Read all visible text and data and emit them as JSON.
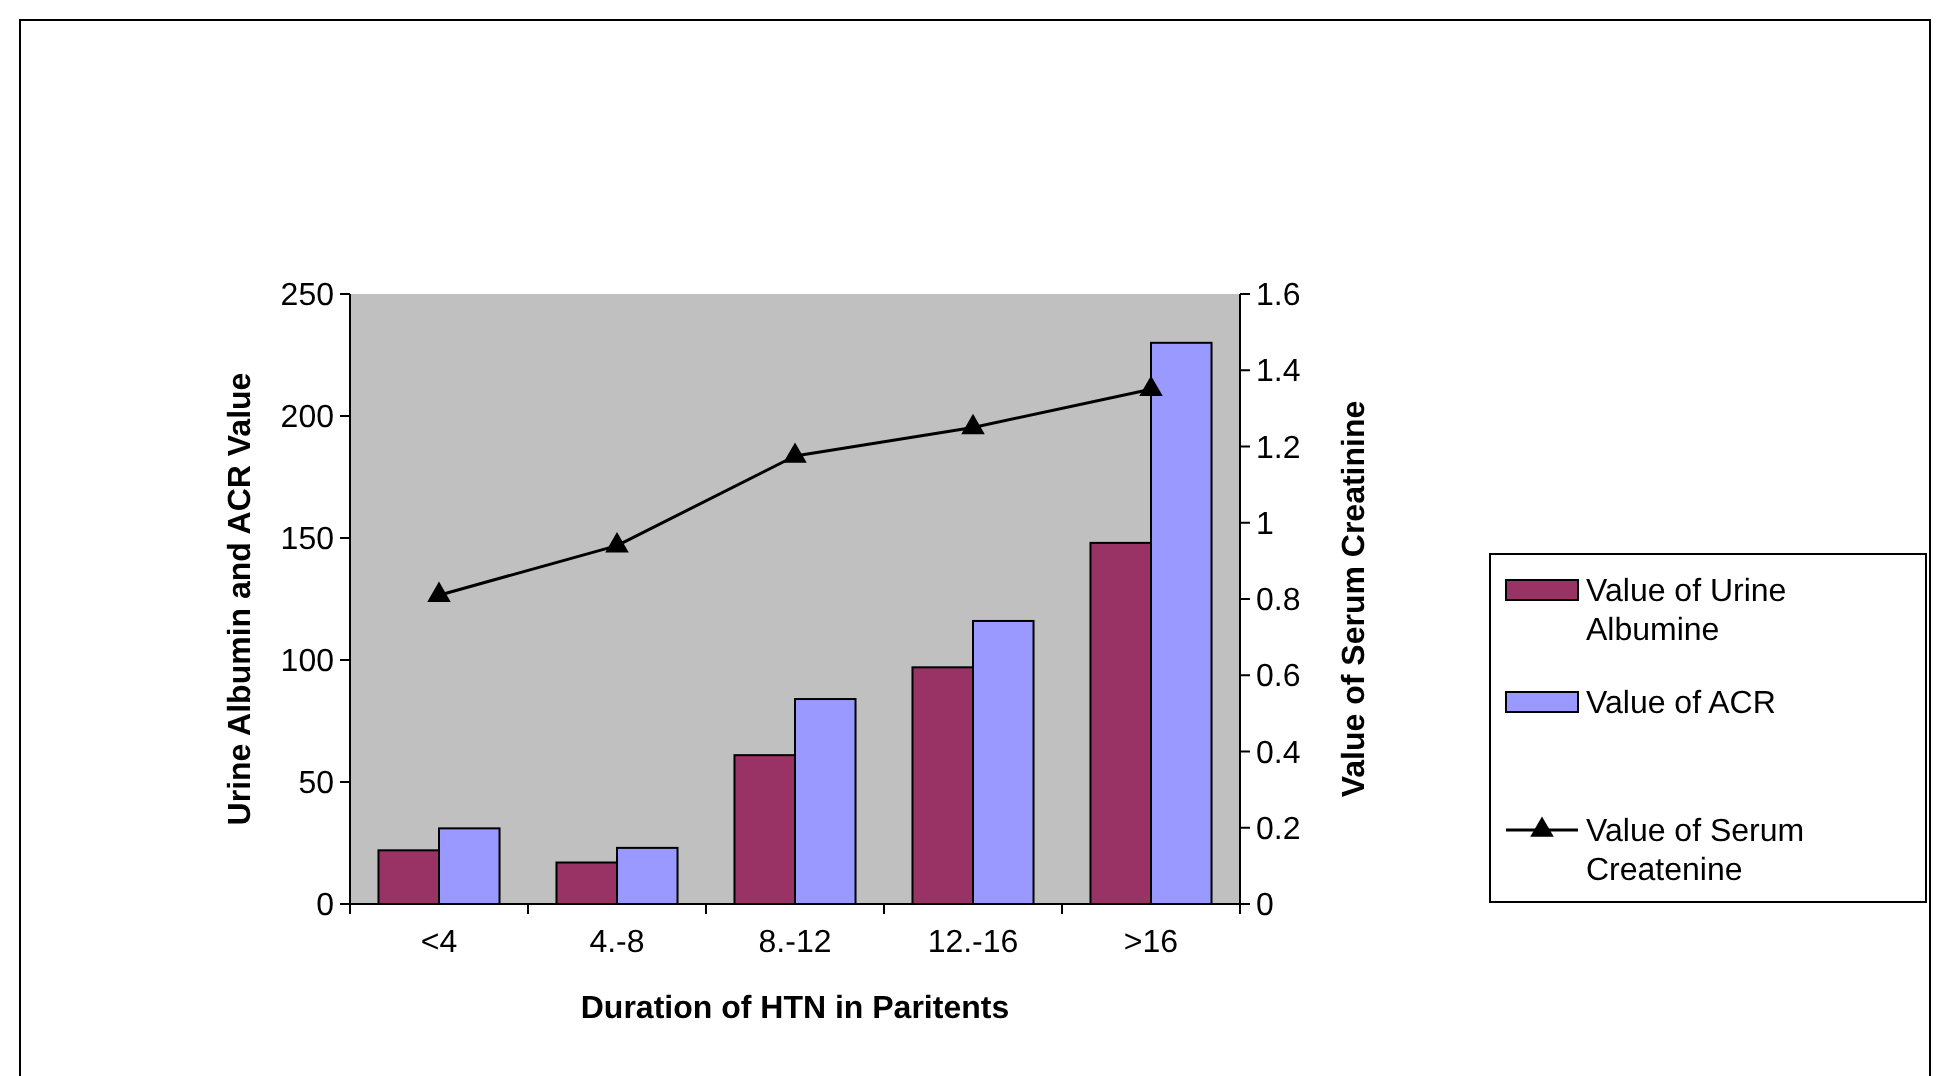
{
  "chart_data": {
    "type": "bar",
    "xlabel": "Duration of HTN in Paritents",
    "ylabel": "Urine Albumin and ACR Value",
    "y2label": "Value of Serum Creatinine",
    "categories": [
      "<4",
      "4.-8",
      "8.-12",
      "12.-16",
      ">16"
    ],
    "series": [
      {
        "name": "Value of Urine Albumine",
        "color": "#993366",
        "values": [
          22,
          17,
          61,
          97,
          148
        ]
      },
      {
        "name": "Value of ACR",
        "color": "#9999ff",
        "values": [
          31,
          23,
          84,
          116,
          230
        ]
      },
      {
        "name": "Value of Serum Createnine",
        "type": "line",
        "axis": "y2",
        "color": "#000000",
        "marker": "triangle",
        "values": [
          0.81,
          0.94,
          1.175,
          1.25,
          1.35
        ]
      }
    ],
    "ylim": [
      0,
      250
    ],
    "yticks": [
      0,
      50,
      100,
      150,
      200,
      250
    ],
    "y2lim": [
      0,
      1.6
    ],
    "y2ticks": [
      0,
      0.2,
      0.4,
      0.6,
      0.8,
      1,
      1.2,
      1.4,
      1.6
    ],
    "grid": false,
    "legend": "right"
  }
}
